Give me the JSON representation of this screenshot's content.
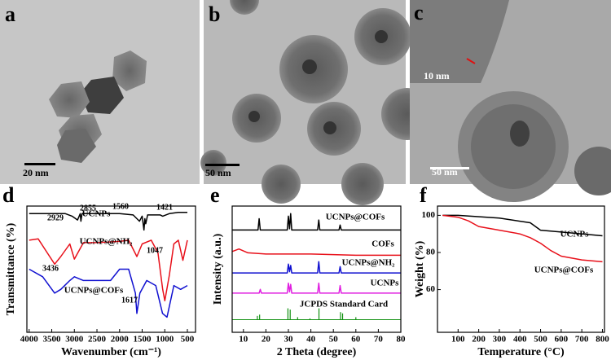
{
  "panels": [
    {
      "label": "a",
      "scale_bar": "20 nm"
    },
    {
      "label": "b",
      "scale_bar": "50 nm"
    },
    {
      "label": "c",
      "scale_bar": "50 nm",
      "inset_scale_bar": "10 nm"
    }
  ],
  "chart_data": [
    {
      "type": "line",
      "panel_label": "d",
      "xlabel": "Wavenumber (cm⁻¹)",
      "ylabel": "Transmittance (%)",
      "xlim": [
        4050,
        320
      ],
      "ylim": [
        0,
        100
      ],
      "xticks": [
        4000,
        3500,
        3000,
        2500,
        2000,
        1500,
        1000,
        500
      ],
      "series": [
        {
          "name": "UCNPs",
          "color": "#000000",
          "x": [
            4000,
            3600,
            3200,
            3050,
            2929,
            2870,
            2855,
            2830,
            2400,
            2000,
            1700,
            1560,
            1500,
            1460,
            1440,
            1421,
            1380,
            1100,
            1047,
            900,
            700,
            500
          ],
          "values": [
            94,
            94,
            94,
            92,
            89,
            94,
            88,
            94,
            94,
            94,
            93,
            88,
            92,
            81,
            90,
            86,
            93,
            93,
            92,
            94,
            95,
            95
          ]
        },
        {
          "name": "UCNPs@NH₂",
          "color": "#e8101a",
          "x": [
            4000,
            3800,
            3600,
            3436,
            3300,
            3100,
            3000,
            2800,
            2500,
            2000,
            1800,
            1617,
            1500,
            1300,
            1150,
            1047,
            1000,
            900,
            800,
            700,
            600,
            500
          ],
          "values": [
            73,
            74,
            63,
            54,
            60,
            70,
            58,
            71,
            71,
            72,
            73,
            60,
            70,
            73,
            63,
            34,
            25,
            45,
            70,
            73,
            57,
            73
          ]
        },
        {
          "name": "UCNPs@COFs",
          "color": "#1010d0",
          "x": [
            4000,
            3700,
            3436,
            3300,
            3100,
            3000,
            2800,
            2500,
            2200,
            2000,
            1800,
            1650,
            1617,
            1550,
            1400,
            1200,
            1050,
            950,
            800,
            650,
            500
          ],
          "values": [
            50,
            44,
            31,
            34,
            41,
            44,
            41,
            41,
            41,
            50,
            50,
            31,
            15,
            31,
            41,
            37,
            15,
            12,
            37,
            34,
            37
          ]
        }
      ],
      "annotations": [
        "2929",
        "2855",
        "1560",
        "1421",
        "3436",
        "1047",
        "1617"
      ]
    },
    {
      "type": "line",
      "panel_label": "e",
      "xlabel": "2 Theta (degree)",
      "ylabel": "Intensity (a.u.)",
      "xlim": [
        5,
        80
      ],
      "ylim": [
        0,
        100
      ],
      "xticks": [
        10,
        20,
        30,
        40,
        50,
        60,
        70,
        80
      ],
      "series": [
        {
          "name": "UCNPs@COFs",
          "color": "#000000",
          "x": [
            5,
            16.5,
            17,
            17.5,
            29.5,
            30,
            30.5,
            31,
            31.5,
            43,
            43.5,
            44,
            52.5,
            53,
            53.5,
            80
          ],
          "values": [
            81,
            81,
            90,
            81,
            81,
            92,
            82,
            94,
            81,
            81,
            89,
            81,
            81,
            85,
            81,
            81
          ]
        },
        {
          "name": "COFs",
          "color": "#e8101a",
          "x": [
            5,
            8,
            12,
            20,
            30,
            40,
            60,
            80
          ],
          "values": [
            64,
            66,
            63,
            62,
            62,
            62,
            61,
            61
          ]
        },
        {
          "name": "UCNPs@NH₂",
          "color": "#1010d0",
          "x": [
            5,
            29.5,
            30,
            30.5,
            31,
            31.5,
            43,
            43.5,
            44,
            52.5,
            53,
            53.5,
            80
          ],
          "values": [
            47,
            47,
            54,
            48,
            53,
            47,
            47,
            56,
            47,
            47,
            52,
            47,
            47
          ]
        },
        {
          "name": "UCNPs",
          "color": "#e020e0",
          "x": [
            5,
            17,
            17.5,
            18,
            29.5,
            30,
            30.5,
            31,
            31.5,
            43,
            43.5,
            44,
            52.5,
            53,
            53.5,
            80
          ],
          "values": [
            31,
            31,
            34,
            31,
            31,
            39,
            32,
            38,
            31,
            31,
            39,
            31,
            31,
            37,
            31,
            31
          ]
        },
        {
          "name": "JCPDS Standard Card",
          "color": "#109010",
          "style": "stick",
          "base": 10,
          "x": [
            16.2,
            17.2,
            29.8,
            30.8,
            34.1,
            39.6,
            43.6,
            53.2,
            54.1,
            60
          ],
          "values": [
            13,
            14,
            19,
            18,
            12,
            11,
            19,
            16,
            15,
            12
          ]
        }
      ]
    },
    {
      "type": "line",
      "panel_label": "f",
      "xlabel": "Temperature (°C)",
      "ylabel": "Weight (%)",
      "xlim": [
        0,
        810
      ],
      "ylim": [
        37,
        105
      ],
      "xticks": [
        100,
        200,
        300,
        400,
        500,
        600,
        700,
        800
      ],
      "yticks": [
        60,
        80,
        100
      ],
      "series": [
        {
          "name": "UCNPs",
          "color": "#000000",
          "x": [
            25,
            100,
            300,
            450,
            500,
            600,
            800
          ],
          "values": [
            100,
            100,
            98.5,
            96,
            92,
            91,
            89
          ]
        },
        {
          "name": "UCNPs@COFs",
          "color": "#e8101a",
          "x": [
            25,
            100,
            150,
            200,
            300,
            400,
            450,
            500,
            550,
            600,
            700,
            800
          ],
          "values": [
            100,
            99,
            97,
            94,
            92,
            90,
            88,
            85,
            81,
            78,
            76,
            75
          ]
        }
      ]
    }
  ]
}
